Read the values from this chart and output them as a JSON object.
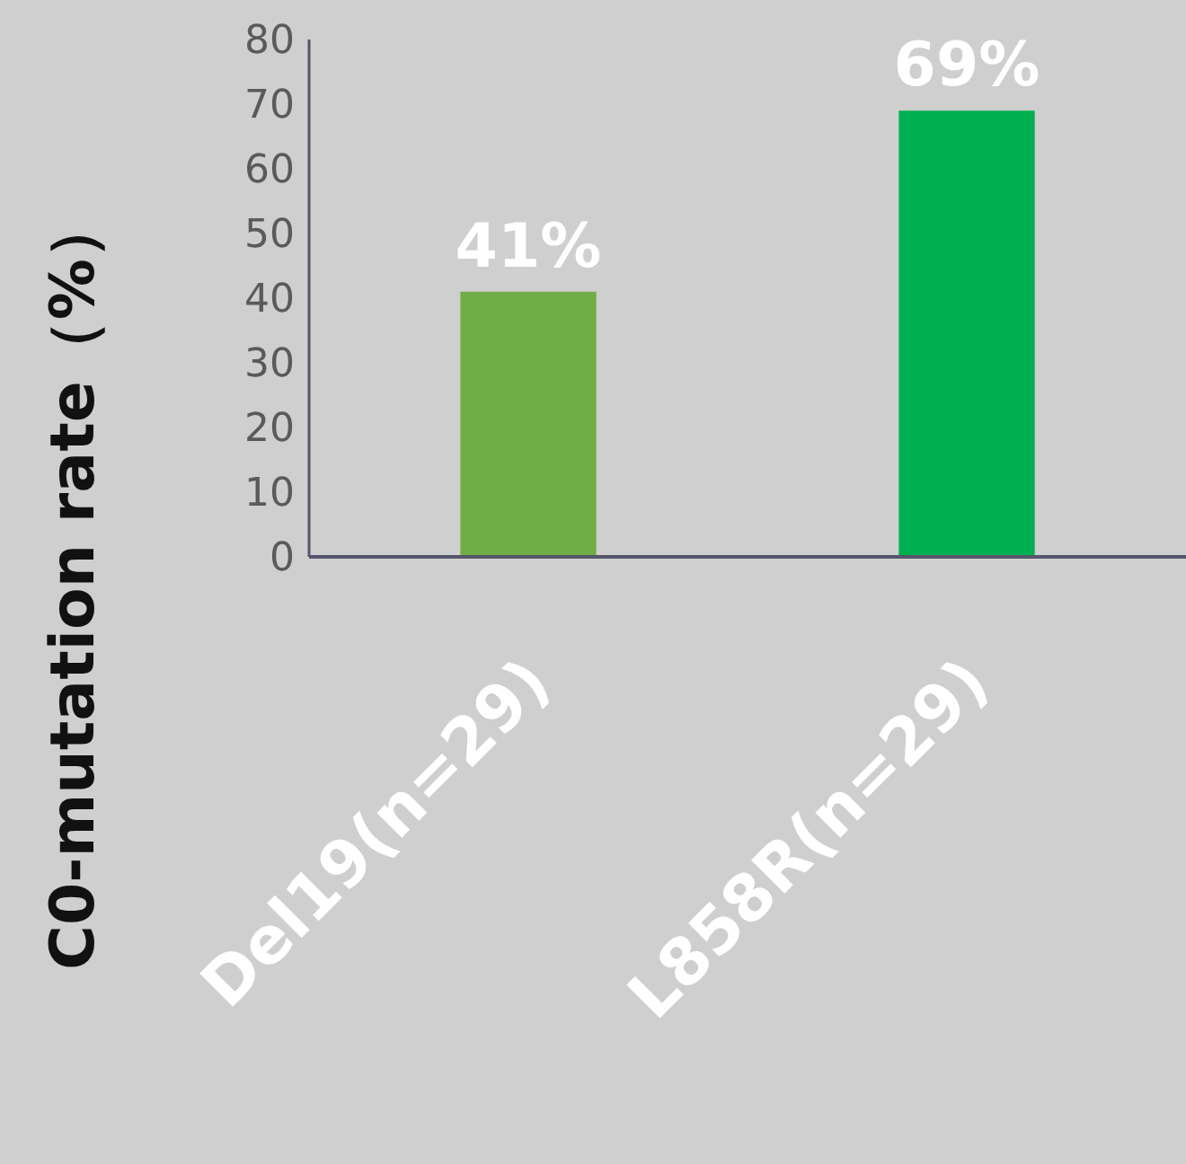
{
  "chart_data": {
    "type": "bar",
    "ylabel": "C0-mutation rate（%）",
    "categories": [
      "Del19(n=29)",
      "L858R(n=29)"
    ],
    "values": [
      41,
      69
    ],
    "colors": [
      "#70ad47",
      "#00b050"
    ],
    "value_labels": [
      "41%",
      "69%"
    ],
    "ylim": [
      0,
      80
    ],
    "yticks": [
      0,
      10,
      20,
      30,
      40,
      50,
      60,
      70,
      80
    ],
    "grid": false
  }
}
